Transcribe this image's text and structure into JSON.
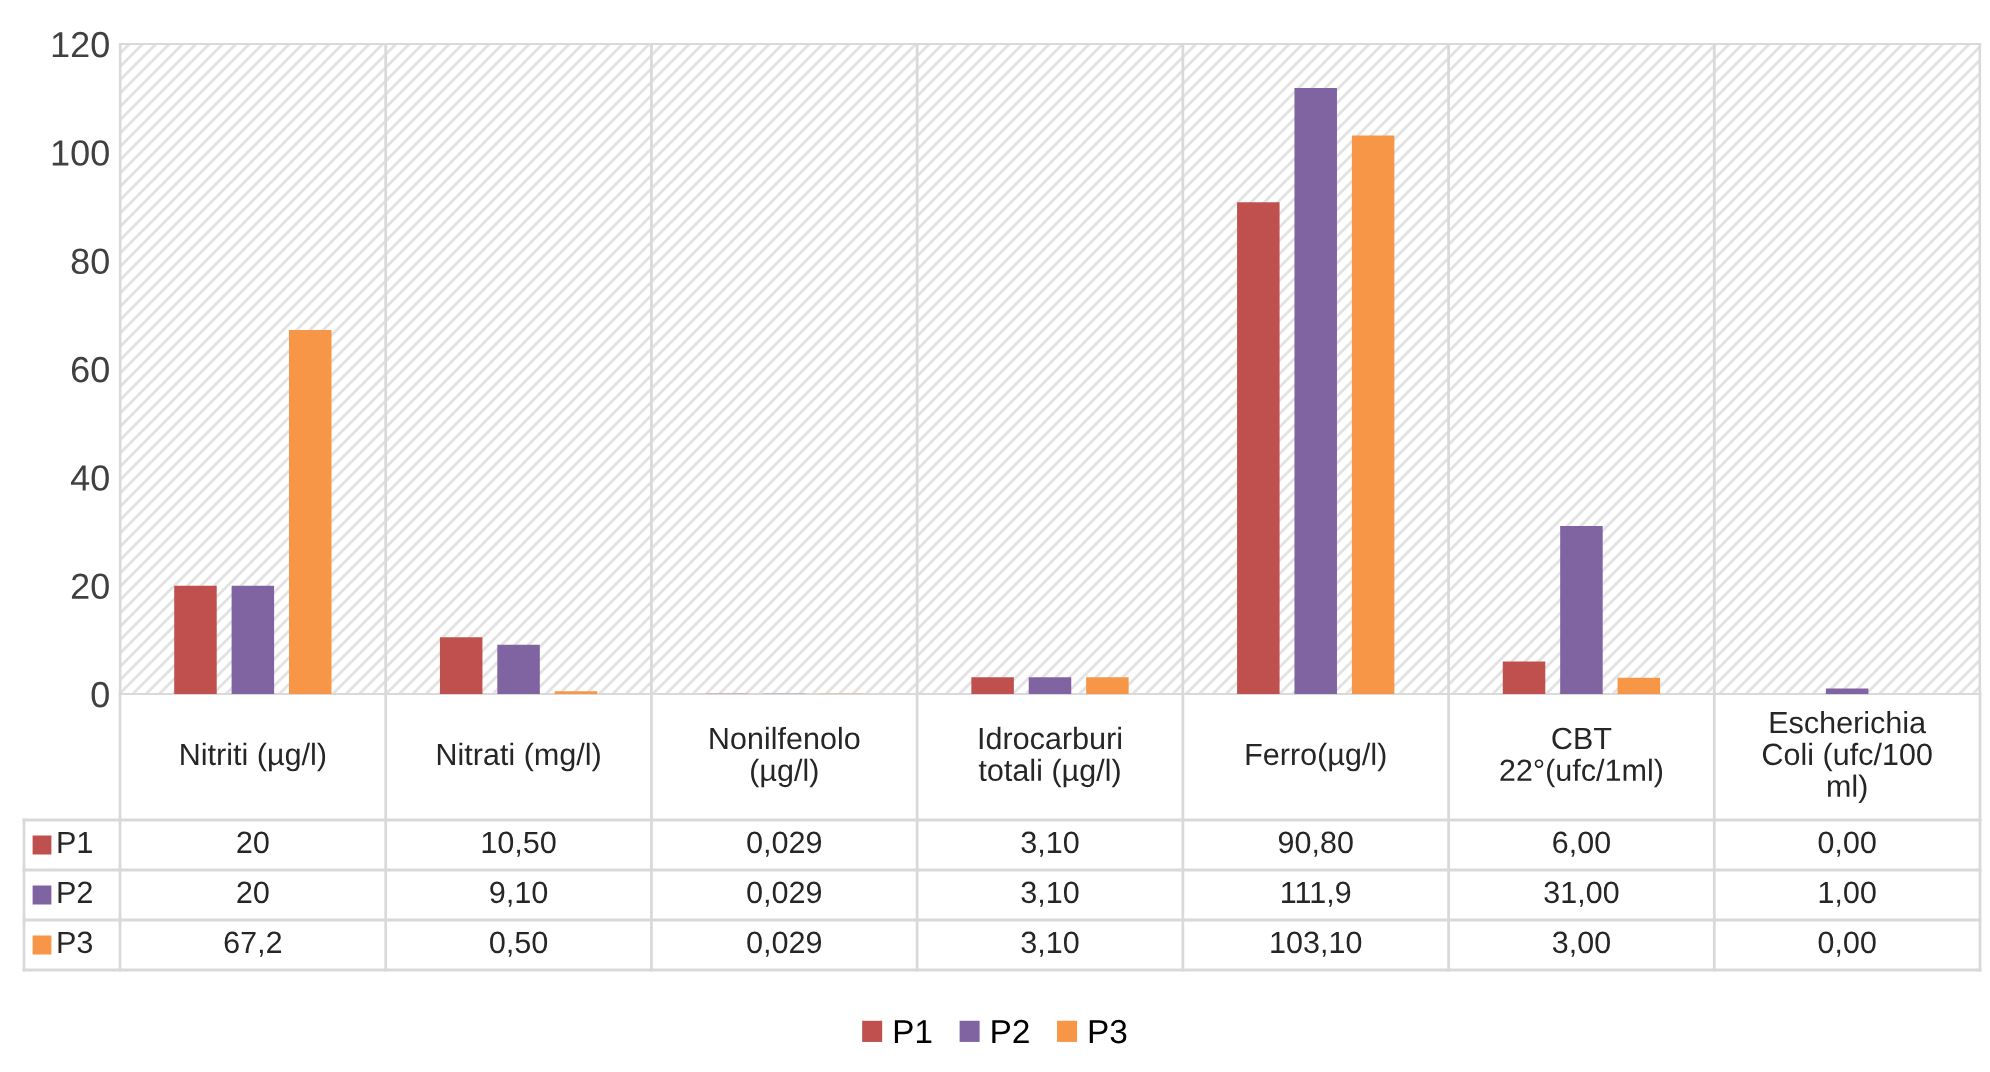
{
  "chart_data": {
    "type": "bar",
    "categories": [
      "Nitriti (µg/l)",
      "Nitrati (mg/l)",
      "Nonilfenolo (µg/l)",
      "Idrocarburi totali (µg/l)",
      "Ferro(µg/l)",
      "CBT 22°(ufc/1ml)",
      "Escherichia Coli (ufc/100 ml)"
    ],
    "series": [
      {
        "name": "P1",
        "color": "#c0504d",
        "values": [
          20,
          10.5,
          0.029,
          3.1,
          90.8,
          6,
          0
        ],
        "value_labels": [
          "20",
          "10,50",
          "0,029",
          "3,10",
          "90,80",
          "6,00",
          "0,00"
        ]
      },
      {
        "name": "P2",
        "color": "#8064a2",
        "values": [
          20,
          9.1,
          0.029,
          3.1,
          111.9,
          31,
          1
        ],
        "value_labels": [
          "20",
          "9,10",
          "0,029",
          "3,10",
          "111,9",
          "31,00",
          "1,00"
        ]
      },
      {
        "name": "P3",
        "color": "#f79646",
        "values": [
          67.2,
          0.5,
          0.029,
          3.1,
          103.1,
          3,
          0
        ],
        "value_labels": [
          "67,2",
          "0,50",
          "0,029",
          "3,10",
          "103,10",
          "3,00",
          "0,00"
        ]
      }
    ],
    "ylim": [
      0,
      120
    ],
    "yticks": [
      0,
      20,
      40,
      60,
      80,
      100,
      120
    ],
    "grid": "x",
    "legend": "bottom"
  }
}
